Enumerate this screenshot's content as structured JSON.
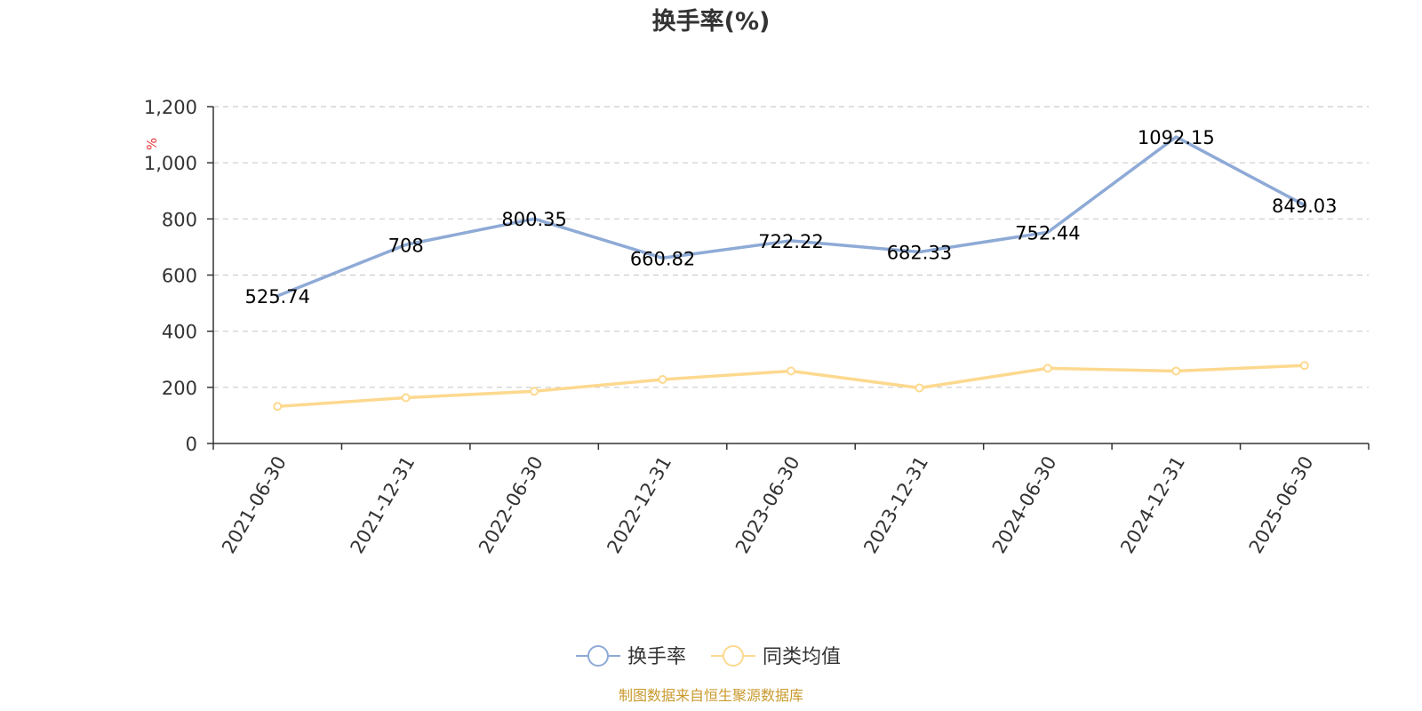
{
  "chart_data": {
    "type": "line",
    "title": "换手率(%)",
    "ylabel": "%",
    "ylim": [
      0,
      1200
    ],
    "yticks": [
      0,
      200,
      400,
      600,
      800,
      1000,
      1200
    ],
    "ytick_labels": [
      "0",
      "200",
      "400",
      "600",
      "800",
      "1,000",
      "1,200"
    ],
    "categories": [
      "2021-06-30",
      "2021-12-31",
      "2022-06-30",
      "2022-12-31",
      "2023-06-30",
      "2023-12-31",
      "2024-06-30",
      "2024-12-31",
      "2025-06-30"
    ],
    "series": [
      {
        "name": "换手率",
        "color": "#8eaad6",
        "values": [
          525.74,
          708,
          800.35,
          660.82,
          722.22,
          682.33,
          752.44,
          1092.15,
          849.03
        ],
        "labels": [
          "525.74",
          "708",
          "800.35",
          "660.82",
          "722.22",
          "682.33",
          "752.44",
          "1092.15",
          "849.03"
        ]
      },
      {
        "name": "同类均值",
        "color": "#fdd98f",
        "values": [
          132,
          163,
          186,
          228,
          258,
          198,
          268,
          258,
          278
        ]
      }
    ],
    "grid": true,
    "legend": "bottom-center"
  },
  "footer": {
    "source": "制图数据来自恒生聚源数据库"
  }
}
